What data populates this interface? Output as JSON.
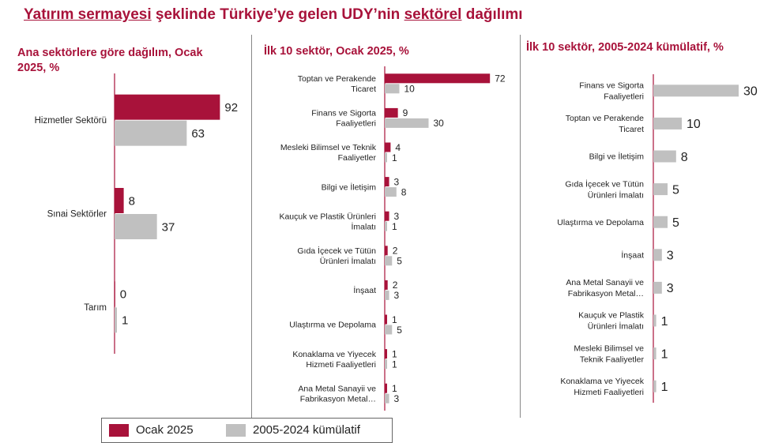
{
  "title": {
    "parts": [
      {
        "text": "Yatırım sermayesi",
        "underline": true
      },
      {
        "text": " şeklinde Türkiye’ye gelen UDY’nin ",
        "underline": false
      },
      {
        "text": "sektörel",
        "underline": true
      },
      {
        "text": " dağılımı",
        "underline": false
      }
    ]
  },
  "colors": {
    "ocak": "#a8123a",
    "kumulatif": "#c0c0c0",
    "title": "#a8123a",
    "axis": "#a8123a"
  },
  "legend": {
    "series_1": "Ocak 2025",
    "series_2": "2005-2024 kümülatif"
  },
  "chart_data": [
    {
      "type": "bar",
      "orientation": "horizontal",
      "title": "Ana sektörlere göre dağılım, Ocak 2025, %",
      "categories": [
        "Hizmetler Sektörü",
        "Sınai Sektörler",
        "Tarım"
      ],
      "series": [
        {
          "name": "Ocak 2025",
          "values": [
            92,
            8,
            0
          ]
        },
        {
          "name": "2005-2024 kümülatif",
          "values": [
            63,
            37,
            1
          ]
        }
      ],
      "xlim": [
        0,
        100
      ]
    },
    {
      "type": "bar",
      "orientation": "horizontal",
      "title": "İlk 10 sektör, Ocak 2025, %",
      "categories": [
        "Toptan ve Perakende Ticaret",
        "Finans ve Sigorta Faaliyetleri",
        "Mesleki Bilimsel ve Teknik Faaliyetler",
        "Bilgi ve İletişim",
        "Kauçuk ve Plastik Ürünleri İmalatı",
        "Gıda İçecek ve Tütün Ürünleri İmalatı",
        "İnşaat",
        "Ulaştırma ve Depolama",
        "Konaklama ve Yiyecek Hizmeti Faaliyetleri",
        "Ana Metal Sanayii ve Fabrikasyon Metal…"
      ],
      "series": [
        {
          "name": "Ocak 2025",
          "values": [
            72,
            9,
            4,
            3,
            3,
            2,
            2,
            1,
            1,
            1
          ]
        },
        {
          "name": "2005-2024 kümülatif",
          "values": [
            10,
            30,
            1,
            8,
            1,
            5,
            3,
            5,
            1,
            3
          ]
        }
      ],
      "xlim": [
        0,
        100
      ]
    },
    {
      "type": "bar",
      "orientation": "horizontal",
      "title": "İlk 10 sektör, 2005-2024 kümülatif, %",
      "categories": [
        "Finans ve Sigorta Faaliyetleri",
        "Toptan ve Perakende Ticaret",
        "Bilgi ve İletişim",
        "Gıda İçecek ve Tütün Ürünleri İmalatı",
        "Ulaştırma ve Depolama",
        "İnşaat",
        "Ana Metal Sanayii ve Fabrikasyon Metal…",
        "Kauçuk ve Plastik Ürünleri İmalatı",
        "Mesleki Bilimsel ve Teknik Faaliyetler",
        "Konaklama ve Yiyecek Hizmeti Faaliyetleri"
      ],
      "series": [
        {
          "name": "2005-2024 kümülatif",
          "values": [
            30,
            10,
            8,
            5,
            5,
            3,
            3,
            1,
            1,
            1
          ]
        }
      ],
      "xlim": [
        0,
        30
      ]
    }
  ]
}
